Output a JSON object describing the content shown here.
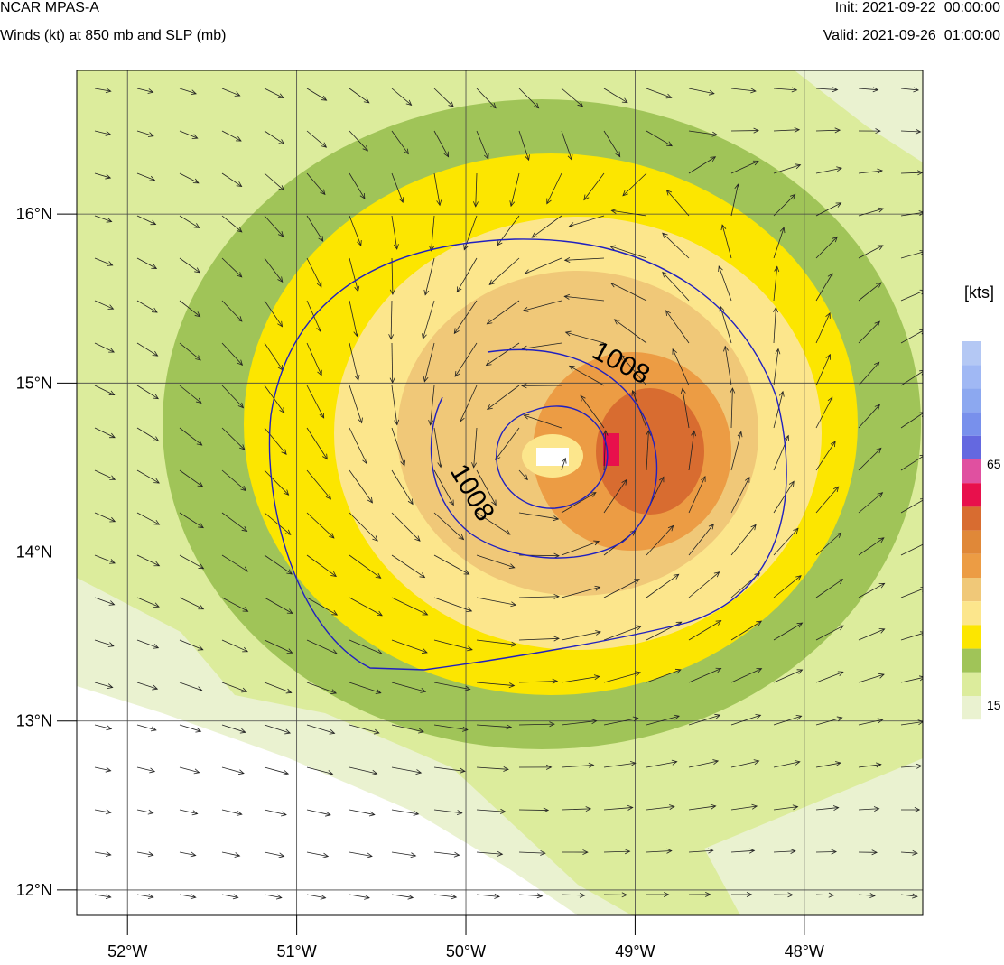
{
  "header": {
    "title": "NCAR MPAS-A",
    "subtitle": "Winds (kt) at 850 mb and SLP (mb)",
    "init": "Init: 2021-09-22_00:00:00",
    "valid": "Valid: 2021-09-26_01:00:00"
  },
  "map": {
    "lon_range": [
      -52.3,
      -47.3
    ],
    "lat_range": [
      11.85,
      16.85
    ],
    "lon_ticks": [
      {
        "value": -52,
        "label": "52°W"
      },
      {
        "value": -51,
        "label": "51°W"
      },
      {
        "value": -50,
        "label": "50°W"
      },
      {
        "value": -49,
        "label": "49°W"
      },
      {
        "value": -48,
        "label": "48°W"
      }
    ],
    "lat_ticks": [
      {
        "value": 16,
        "label": "16°N"
      },
      {
        "value": 15,
        "label": "15°N"
      },
      {
        "value": 14,
        "label": "14°N"
      },
      {
        "value": 13,
        "label": "13°N"
      },
      {
        "value": 12,
        "label": "12°N"
      }
    ],
    "grid": true,
    "storm_center": {
      "lon": -49.55,
      "lat": 14.55
    },
    "max_wind_location": {
      "lon": -49.15,
      "lat": 14.6
    },
    "wind_field": "cyclonic (counter-clockwise) circulation, northwesterly-to-westerly flow at southern edge",
    "slp_contours": [
      {
        "level": 1008,
        "label": "1008",
        "label_count": 2
      }
    ]
  },
  "colorbar": {
    "unit": "[kts]",
    "labels": [
      "65",
      "15"
    ],
    "colors": [
      "#b4c8f4",
      "#a0b8f4",
      "#8ca8f0",
      "#7890ec",
      "#6468e0",
      "#e050a0",
      "#e8104c",
      "#d86c30",
      "#e08838",
      "#ec9c44",
      "#f0c878",
      "#fce68c",
      "#fce600",
      "#a0c458",
      "#dcec9c",
      "#eaf2d0"
    ]
  }
}
